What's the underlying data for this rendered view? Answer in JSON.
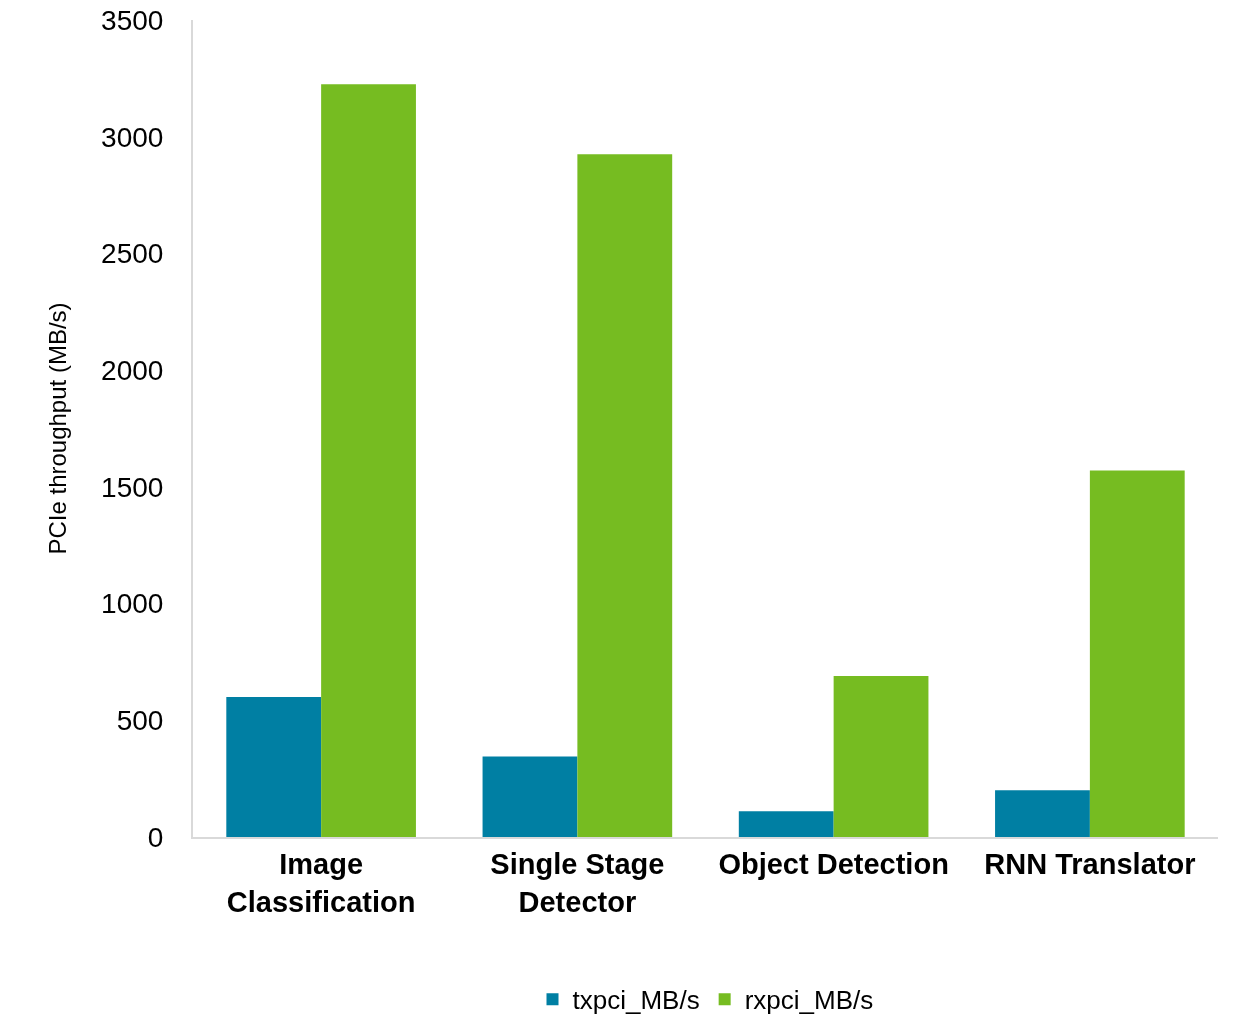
{
  "chart_data": {
    "type": "bar",
    "ylabel": "PCIe throughput (MB/s)",
    "categories": [
      "Image Classification",
      "Single Stage Detector",
      "Object Detection",
      "RNN Translator"
    ],
    "series": [
      {
        "name": "txpci_MB/s",
        "color": "#007fa3",
        "values": [
          600,
          345,
          110,
          200
        ]
      },
      {
        "name": "rxpci_MB/s",
        "color": "#76bc21",
        "values": [
          3225,
          2925,
          690,
          1570
        ]
      }
    ],
    "ylim": [
      0,
      3500
    ],
    "yticks": [
      0,
      500,
      1000,
      1500,
      2000,
      2500,
      3000,
      3500
    ],
    "grid": false,
    "legend": "bottom"
  }
}
